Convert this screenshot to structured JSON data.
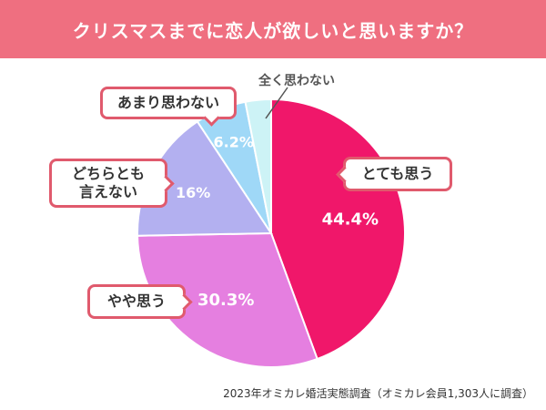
{
  "header": {
    "title": "クリスマスまでに恋人が欲しいと思いますか？"
  },
  "chart_data": {
    "type": "pie",
    "slices": [
      {
        "label": "とても思う",
        "value": 44.4,
        "value_label": "44.4%",
        "color": "#f0176a"
      },
      {
        "label": "やや思う",
        "value": 30.3,
        "value_label": "30.3%",
        "color": "#e57fe0"
      },
      {
        "label": "どちらとも言えない",
        "value": 16.0,
        "value_label": "16%",
        "color": "#b3b0f0"
      },
      {
        "label": "あまり思わない",
        "value": 6.2,
        "value_label": "6.2%",
        "color": "#9fd8f7"
      },
      {
        "label": "全く思わない",
        "value": 3.1,
        "value_label": "",
        "color": "#cdf3f6"
      }
    ]
  },
  "labels": {
    "totemo": "とても思う",
    "yaya": "やや思う",
    "dochira_line1": "どちらとも",
    "dochira_line2": "言えない",
    "amari": "あまり思わない",
    "mattaku": "全く思わない"
  },
  "source": "2023年オミカレ婚活実態調査（オミカレ会員1,303人に調査）"
}
